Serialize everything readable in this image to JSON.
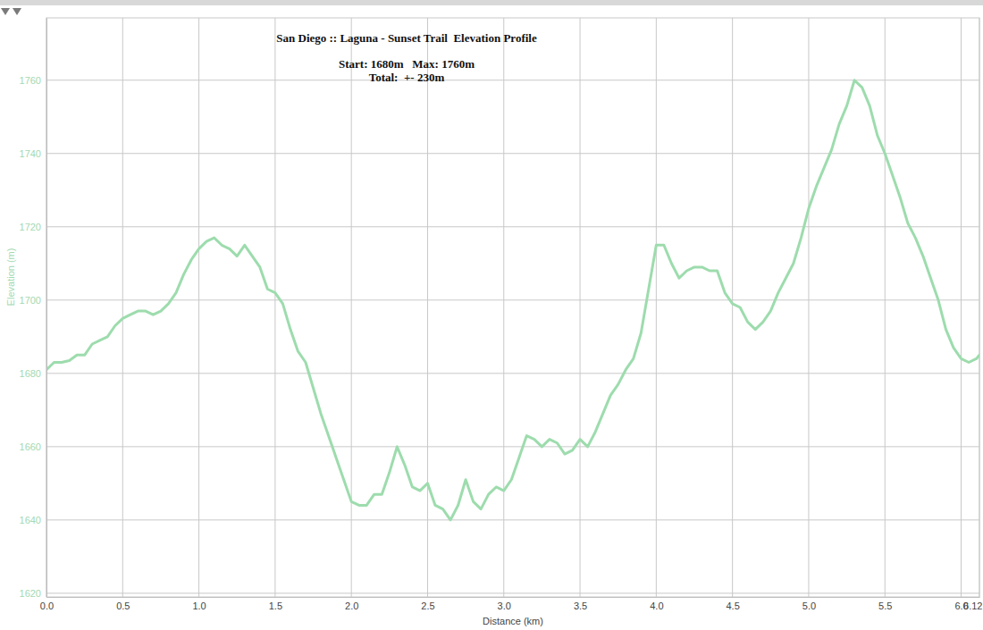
{
  "chart_data": {
    "type": "line",
    "title": "San Diego :: Laguna - Sunset Trail  Elevation Profile",
    "subtitle": [
      "Start: 1680m   Max: 1760m",
      "Total:  +- 230m"
    ],
    "x_label": "Distance (km)",
    "y_label": "Elevation (m)",
    "color": "#9ddcad",
    "grid": true,
    "x": [
      0,
      0.05,
      0.1,
      0.15,
      0.2,
      0.25,
      0.3,
      0.35,
      0.4,
      0.45,
      0.5,
      0.55,
      0.6,
      0.65,
      0.7,
      0.75,
      0.8,
      0.85,
      0.9,
      0.95,
      1.0,
      1.05,
      1.1,
      1.15,
      1.2,
      1.25,
      1.3,
      1.35,
      1.4,
      1.45,
      1.5,
      1.55,
      1.6,
      1.65,
      1.7,
      1.75,
      1.8,
      1.85,
      1.9,
      1.95,
      2.0,
      2.05,
      2.1,
      2.15,
      2.2,
      2.25,
      2.3,
      2.35,
      2.4,
      2.45,
      2.5,
      2.55,
      2.6,
      2.65,
      2.7,
      2.75,
      2.8,
      2.85,
      2.9,
      2.95,
      3.0,
      3.05,
      3.1,
      3.15,
      3.2,
      3.25,
      3.3,
      3.35,
      3.4,
      3.45,
      3.5,
      3.55,
      3.6,
      3.65,
      3.7,
      3.75,
      3.8,
      3.85,
      3.9,
      3.95,
      4.0,
      4.05,
      4.1,
      4.15,
      4.2,
      4.25,
      4.3,
      4.35,
      4.4,
      4.45,
      4.5,
      4.55,
      4.6,
      4.65,
      4.7,
      4.75,
      4.8,
      4.85,
      4.9,
      4.95,
      5.0,
      5.05,
      5.1,
      5.15,
      5.2,
      5.25,
      5.3,
      5.35,
      5.4,
      5.45,
      5.5,
      5.55,
      5.6,
      5.65,
      5.7,
      5.75,
      5.8,
      5.85,
      5.9,
      5.95,
      6.0,
      6.05,
      6.1,
      6.12
    ],
    "values": [
      1681,
      1683,
      1683,
      1683.5,
      1685,
      1685,
      1688,
      1689,
      1690,
      1693,
      1695,
      1696,
      1697,
      1697,
      1696,
      1697,
      1699,
      1702,
      1707,
      1711,
      1714,
      1716,
      1717,
      1715,
      1714,
      1712,
      1715,
      1712,
      1709,
      1703,
      1702,
      1699,
      1692,
      1686,
      1683,
      1676,
      1669,
      1663,
      1657,
      1651,
      1645,
      1644,
      1644,
      1647,
      1647,
      1653,
      1660,
      1655,
      1649,
      1648,
      1650,
      1644,
      1643,
      1640,
      1644,
      1651,
      1645,
      1643,
      1647,
      1649,
      1648,
      1651,
      1657,
      1663,
      1662,
      1660,
      1662,
      1661,
      1658,
      1659,
      1662,
      1660,
      1664,
      1669,
      1674,
      1677,
      1681,
      1684,
      1691,
      1703,
      1715,
      1715,
      1710,
      1706,
      1708,
      1709,
      1709,
      1708,
      1708,
      1702,
      1699,
      1698,
      1694,
      1692,
      1694,
      1697,
      1702,
      1706,
      1710,
      1717,
      1725,
      1731,
      1736,
      1741,
      1748,
      1753,
      1760,
      1758,
      1753,
      1745,
      1740,
      1734,
      1728,
      1721,
      1717,
      1712,
      1706,
      1700,
      1692,
      1687,
      1684,
      1683,
      1684,
      1685
    ],
    "xlim": [
      0,
      6.12
    ],
    "xticks": [
      {
        "value": 0,
        "label": "0.0"
      },
      0.5,
      {
        "value": 1,
        "label": "1.0"
      },
      1.5,
      {
        "value": 2,
        "label": "2.0"
      },
      2.5,
      {
        "value": 3,
        "label": "3.0"
      },
      3.5,
      {
        "value": 4,
        "label": "4.0"
      },
      4.5,
      {
        "value": 5,
        "label": "5.0"
      },
      5.5,
      {
        "value": 6,
        "label": "6.0"
      },
      6.12
    ],
    "ylim": [
      1619,
      1777
    ],
    "yticks": [
      1620,
      1640,
      1660,
      1680,
      1700,
      1720,
      1740,
      1760
    ]
  }
}
